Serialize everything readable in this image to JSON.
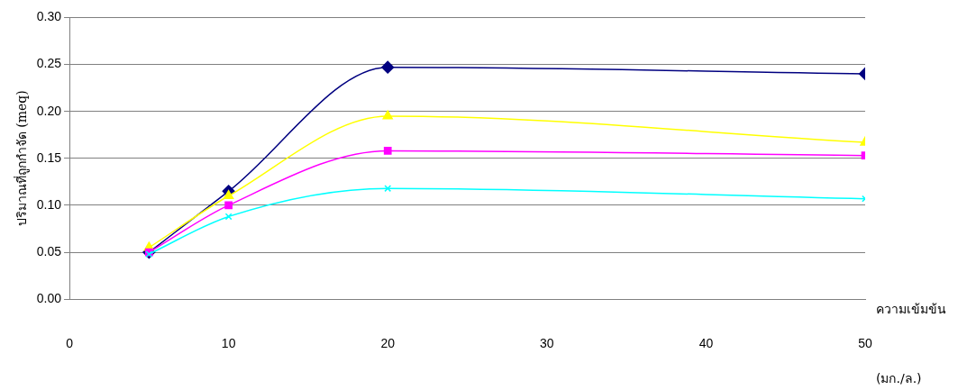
{
  "chart_data": {
    "type": "line",
    "xlabel": "ความเข้มข้น (มก./ล.)",
    "ylabel": "ปริมาณที่ถูกกำจัด (meq)",
    "x": [
      5,
      10,
      20,
      50
    ],
    "series": [
      {
        "color": "#000080",
        "marker": "diamond",
        "values": [
          0.05,
          0.115,
          0.247,
          0.24
        ]
      },
      {
        "color": "#ffff00",
        "marker": "triangle",
        "values": [
          0.055,
          0.11,
          0.195,
          0.167
        ]
      },
      {
        "color": "#ff00ff",
        "marker": "square",
        "values": [
          0.05,
          0.1,
          0.158,
          0.153
        ]
      },
      {
        "color": "#00ffff",
        "marker": "cross",
        "values": [
          0.048,
          0.088,
          0.118,
          0.107
        ]
      }
    ],
    "xlim": [
      0,
      50
    ],
    "xticks": [
      0,
      10,
      20,
      30,
      40,
      50
    ],
    "ylim": [
      0,
      0.3
    ],
    "yticks": [
      {
        "value": 0,
        "label": "0.00"
      },
      {
        "value": 0.05,
        "label": "0.05"
      },
      {
        "value": 0.1,
        "label": "0.10"
      },
      {
        "value": 0.15,
        "label": "0.15"
      },
      {
        "value": 0.2,
        "label": "0.20"
      },
      {
        "value": 0.25,
        "label": "0.25"
      },
      {
        "value": 0.3,
        "label": "0.30"
      }
    ],
    "grid": "y",
    "legend": false
  }
}
